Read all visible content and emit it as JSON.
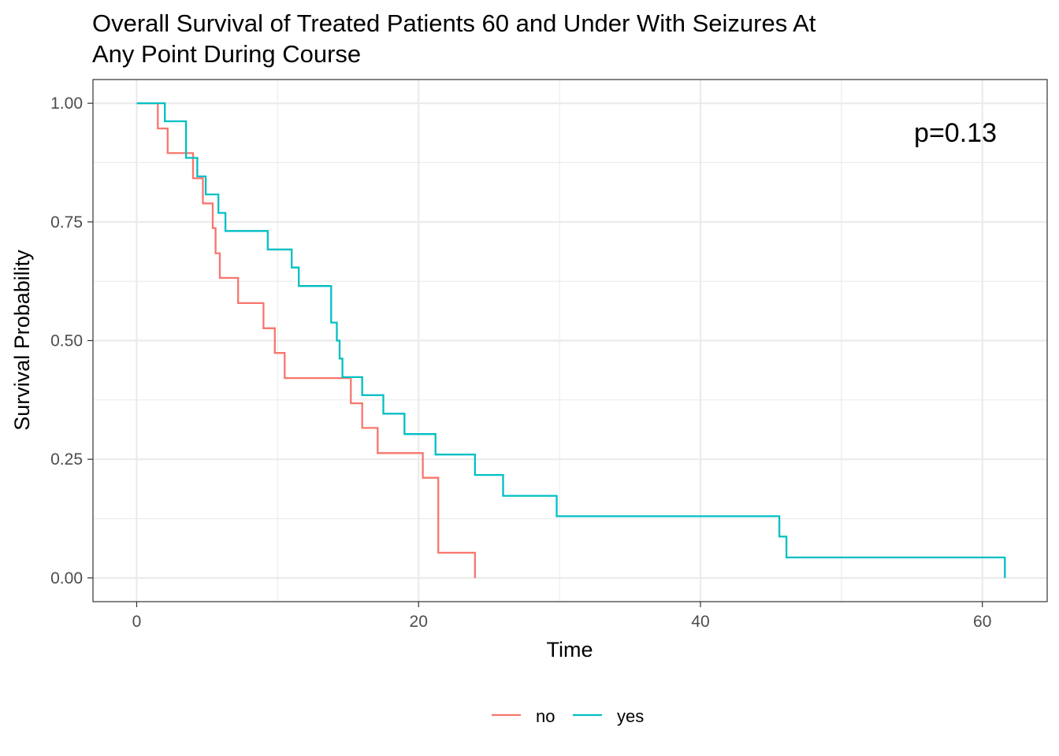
{
  "chart_data": {
    "type": "line",
    "subtype": "kaplan-meier-step",
    "title_lines": [
      "Overall Survival of Treated Patients 60 and Under With Seizures At",
      "Any Point During Course"
    ],
    "xlabel": "Time",
    "ylabel": "Survival Probability",
    "xlim": [
      -3.1,
      64.6
    ],
    "ylim": [
      -0.05,
      1.05
    ],
    "xticks": [
      0,
      20,
      40,
      60
    ],
    "xtick_labels": [
      "0",
      "20",
      "40",
      "60"
    ],
    "yticks": [
      0,
      0.25,
      0.5,
      0.75,
      1.0
    ],
    "ytick_labels": [
      "0.00",
      "0.25",
      "0.50",
      "0.75",
      "1.00"
    ],
    "x_minor_gridlines": [
      10,
      30,
      50
    ],
    "y_minor_gridlines": [
      0.125,
      0.375,
      0.625,
      0.875
    ],
    "grid": true,
    "legend_position": "bottom",
    "annotation": "p=0.13",
    "series": [
      {
        "name": "no",
        "color": "#F8766D",
        "times": [
          0,
          1.5,
          2.2,
          4.0,
          4.7,
          5.4,
          5.6,
          5.9,
          7.2,
          9.0,
          9.8,
          10.5,
          15.2,
          16.0,
          17.1,
          20.3,
          21.4,
          24.0
        ],
        "survival": [
          1.0,
          0.947,
          0.895,
          0.842,
          0.789,
          0.737,
          0.684,
          0.632,
          0.579,
          0.526,
          0.474,
          0.421,
          0.368,
          0.316,
          0.263,
          0.211,
          0.053,
          0.0
        ]
      },
      {
        "name": "yes",
        "color": "#00BFC4",
        "times": [
          0,
          2.0,
          3.5,
          4.3,
          4.9,
          5.8,
          6.3,
          9.3,
          11.0,
          11.5,
          13.8,
          14.2,
          14.4,
          14.6,
          16.0,
          17.5,
          19.0,
          21.2,
          24.0,
          26.0,
          29.8,
          45.6,
          46.1,
          61.6
        ],
        "survival": [
          1.0,
          0.962,
          0.885,
          0.846,
          0.808,
          0.769,
          0.731,
          0.692,
          0.654,
          0.615,
          0.538,
          0.5,
          0.462,
          0.423,
          0.385,
          0.346,
          0.303,
          0.26,
          0.217,
          0.173,
          0.13,
          0.087,
          0.043,
          0.0
        ]
      }
    ]
  }
}
